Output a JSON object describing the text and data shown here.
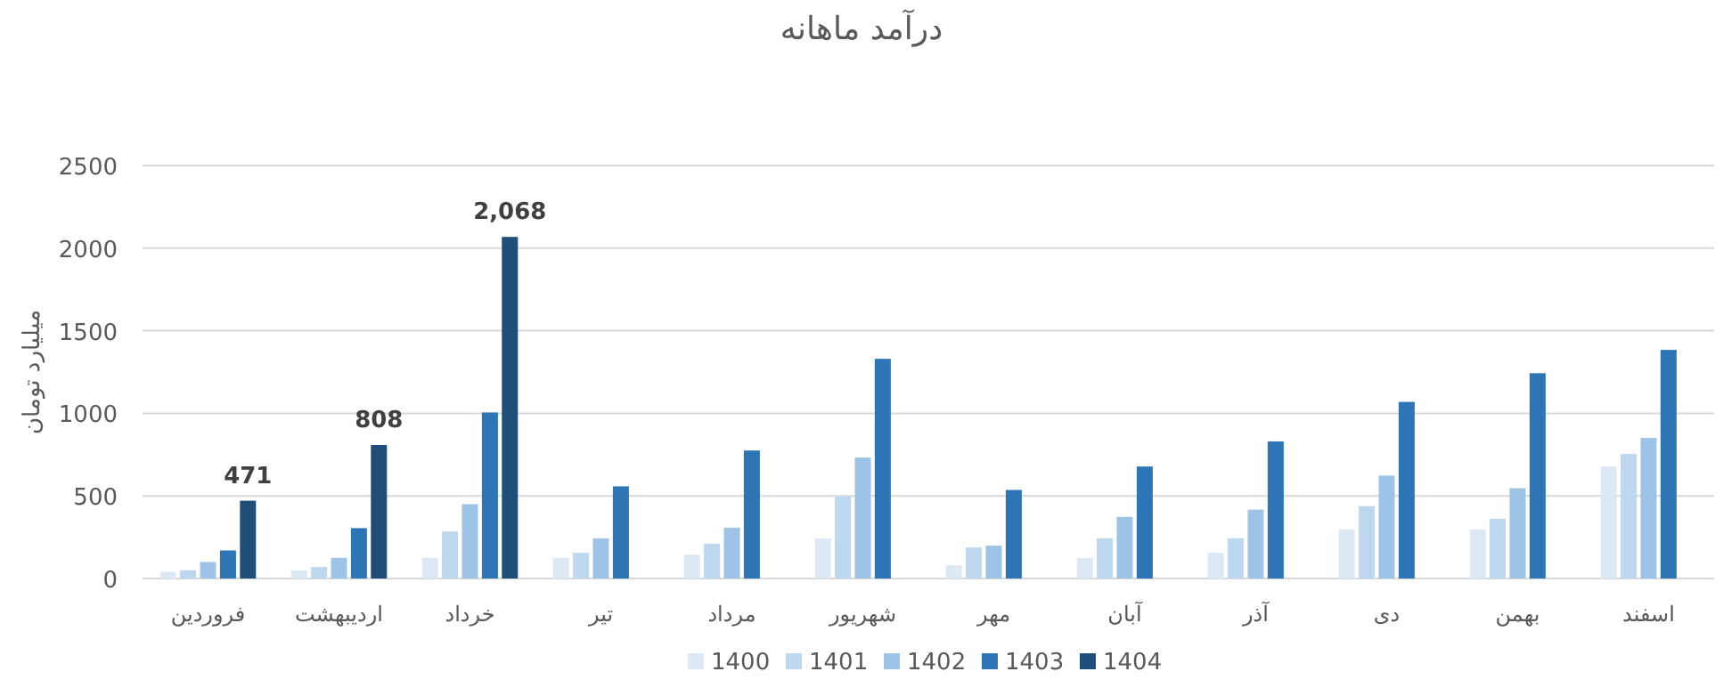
{
  "chart_data": {
    "type": "bar",
    "title": "درآمد ماهانه",
    "ylabel": "میلیارد تومان",
    "categories": [
      "فروردین",
      "اردیبهشت",
      "خرداد",
      "تیر",
      "مرداد",
      "شهریور",
      "مهر",
      "آبان",
      "آذر",
      "دی",
      "بهمن",
      "اسفند"
    ],
    "series": [
      {
        "name": "1400",
        "color": "#dde8f5",
        "values": [
          40,
          50,
          125,
          125,
          145,
          243,
          80,
          123,
          156,
          297,
          297,
          678
        ]
      },
      {
        "name": "1401",
        "color": "#bdd7ee",
        "values": [
          50,
          70,
          285,
          156,
          210,
          496,
          188,
          243,
          243,
          438,
          362,
          754
        ]
      },
      {
        "name": "1402",
        "color": "#9dc3e6",
        "values": [
          100,
          125,
          450,
          243,
          308,
          732,
          199,
          373,
          417,
          623,
          547,
          851
        ]
      },
      {
        "name": "1403",
        "color": "#2e75b6",
        "values": [
          170,
          305,
          1005,
          558,
          775,
          1330,
          536,
          678,
          830,
          1069,
          1243,
          1384
        ]
      },
      {
        "name": "1404",
        "color": "#1f4e79",
        "values": [
          471,
          808,
          2068,
          null,
          null,
          null,
          null,
          null,
          null,
          null,
          null,
          null
        ],
        "value_labels": [
          "471",
          "808",
          "2,068",
          null,
          null,
          null,
          null,
          null,
          null,
          null,
          null,
          null
        ]
      }
    ],
    "ylim": [
      0,
      2500
    ],
    "yticks": [
      0,
      500,
      1000,
      1500,
      2000,
      2500
    ],
    "grid": "y",
    "legend": "bottom"
  }
}
